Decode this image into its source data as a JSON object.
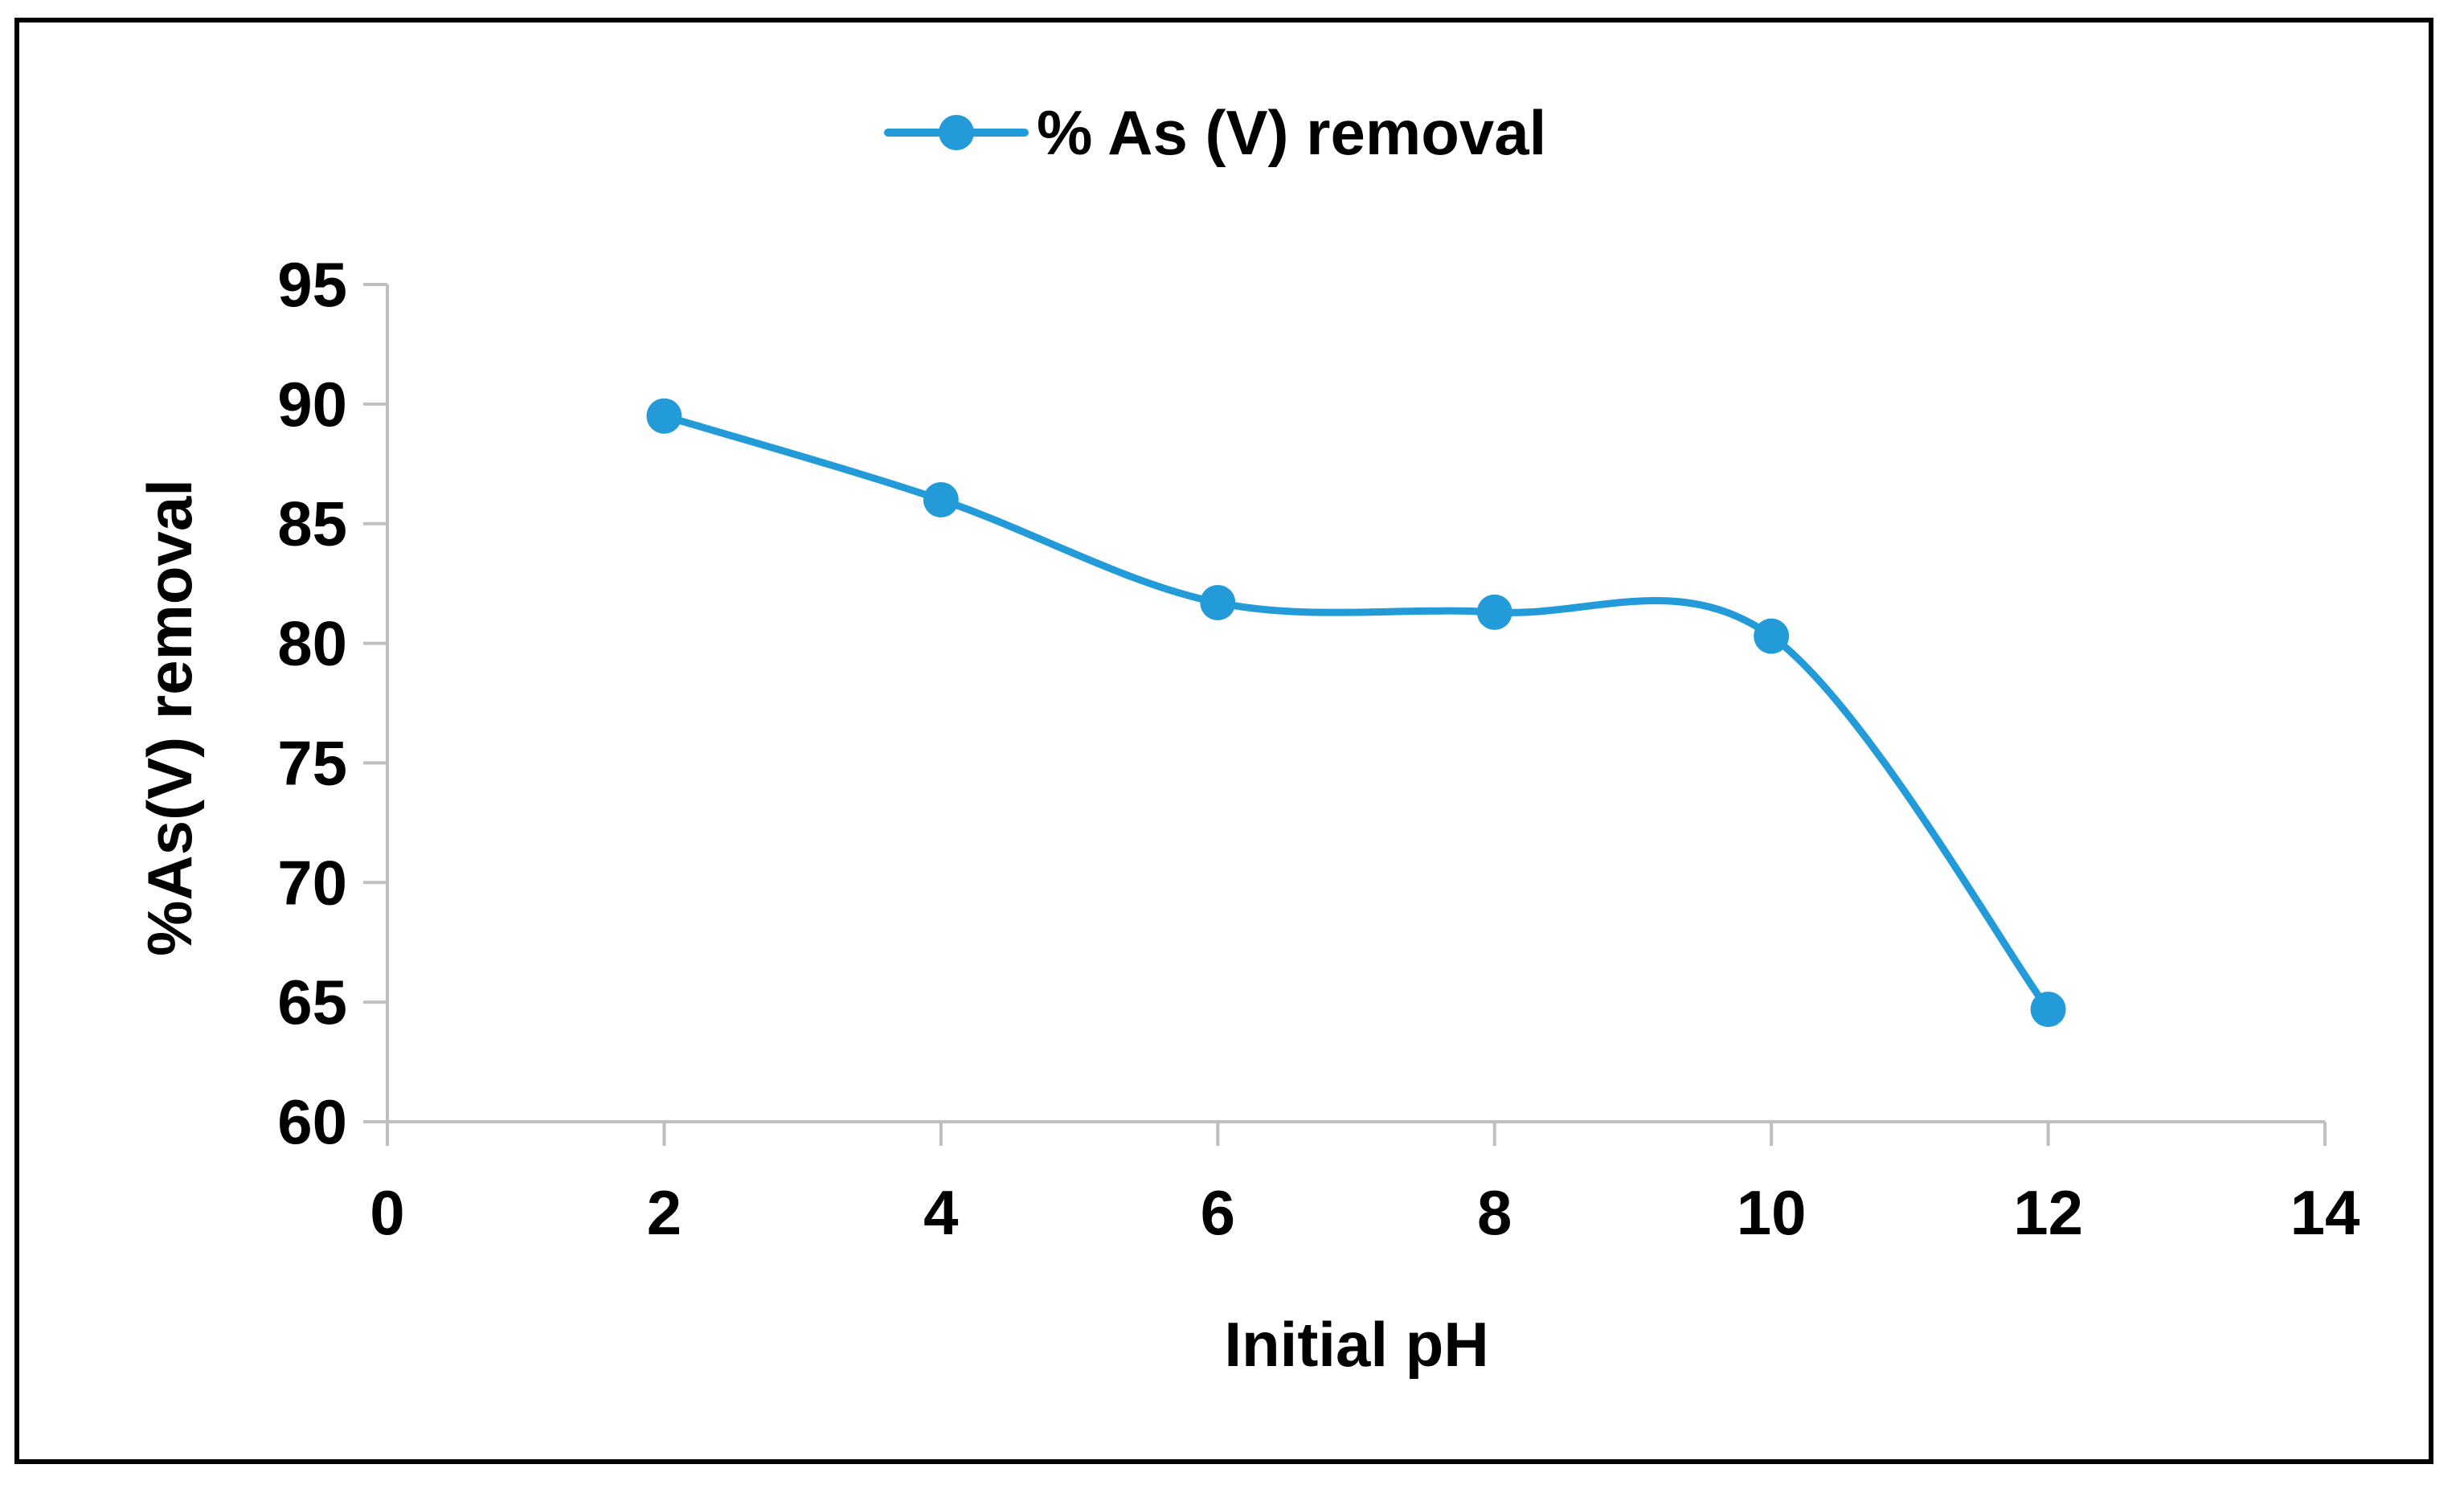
{
  "chart_data": {
    "type": "line",
    "title": "",
    "xlabel": "Initial pH",
    "ylabel": "%As(V) removal",
    "xlim": [
      0,
      14
    ],
    "ylim": [
      60,
      95
    ],
    "xticks": [
      0,
      2,
      4,
      6,
      8,
      10,
      12,
      14
    ],
    "yticks": [
      60,
      65,
      70,
      75,
      80,
      85,
      90,
      95
    ],
    "grid": false,
    "legend_position": "top-center",
    "series": [
      {
        "name": "% As (V) removal",
        "color": "#239BD8",
        "smooth": true,
        "x": [
          2,
          4,
          6,
          8,
          10,
          12
        ],
        "y": [
          89.5,
          86,
          81.7,
          81.3,
          80.3,
          64.7
        ]
      }
    ]
  }
}
